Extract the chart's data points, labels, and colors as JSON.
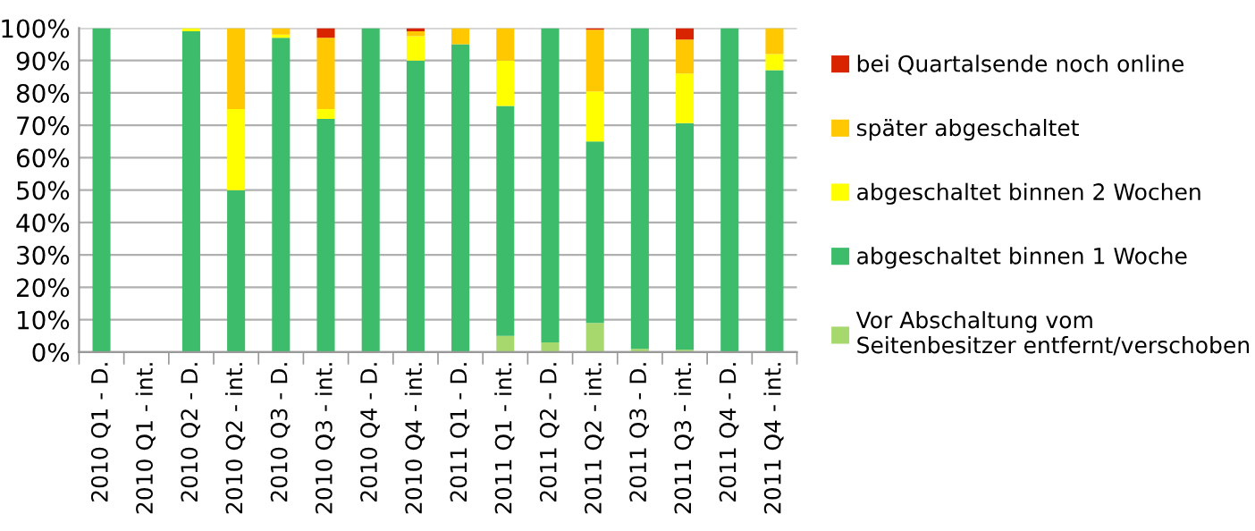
{
  "chart_data": {
    "type": "bar",
    "stacked": true,
    "categories": [
      "2010 Q1 - D.",
      "2010 Q1 - int.",
      "2010 Q2 - D.",
      "2010 Q2 - int.",
      "2010 Q3 - D.",
      "2010 Q3 - int.",
      "2010 Q4 - D.",
      "2010 Q4 - int.",
      "2011 Q1 - D.",
      "2011 Q1 - int.",
      "2011 Q2 - D.",
      "2011 Q2 - int.",
      "2011 Q3 - D.",
      "2011 Q3 - int.",
      "2011 Q4 - D.",
      "2011 Q4 - int."
    ],
    "series": [
      {
        "name": "Vor Abschaltung vom\nSeitenbesitzer entfernt/verschoben",
        "color": "#a6d86e",
        "values": [
          0,
          null,
          0,
          0,
          0,
          0,
          0,
          0,
          0,
          5,
          3,
          9,
          1,
          0.7,
          0,
          0
        ]
      },
      {
        "name": "abgeschaltet binnen 1 Woche",
        "color": "#3dbd6b",
        "values": [
          100,
          null,
          99,
          50,
          97,
          72,
          100,
          90,
          95,
          71,
          97,
          56,
          99,
          70,
          100,
          87
        ]
      },
      {
        "name": "abgeschaltet binnen 2 Wochen",
        "color": "#ffff00",
        "values": [
          0,
          null,
          1,
          25,
          1,
          3,
          0,
          7.5,
          0,
          14,
          0,
          15.5,
          0,
          15.3,
          0,
          5
        ]
      },
      {
        "name": "später abgeschaltet",
        "color": "#ffc800",
        "values": [
          0,
          null,
          0,
          25,
          2,
          22,
          0,
          1.5,
          5,
          10,
          0,
          19,
          0,
          10.5,
          0,
          8
        ]
      },
      {
        "name": "bei Quartalsende noch online",
        "color": "#d92400",
        "values": [
          0,
          null,
          0,
          0,
          0,
          3,
          0,
          1,
          0,
          0,
          0,
          0.5,
          0,
          3.5,
          0,
          0
        ]
      }
    ],
    "ylim": [
      0,
      100
    ],
    "yticks": [
      {
        "value": 0,
        "label": "0%"
      },
      {
        "value": 10,
        "label": "10%"
      },
      {
        "value": 20,
        "label": "20%"
      },
      {
        "value": 30,
        "label": "30%"
      },
      {
        "value": 40,
        "label": "40%"
      },
      {
        "value": 50,
        "label": "50%"
      },
      {
        "value": 60,
        "label": "60%"
      },
      {
        "value": 70,
        "label": "70%"
      },
      {
        "value": 80,
        "label": "80%"
      },
      {
        "value": 90,
        "label": "90%"
      },
      {
        "value": 100,
        "label": "100%"
      }
    ],
    "grid": "y",
    "legend": "right"
  }
}
